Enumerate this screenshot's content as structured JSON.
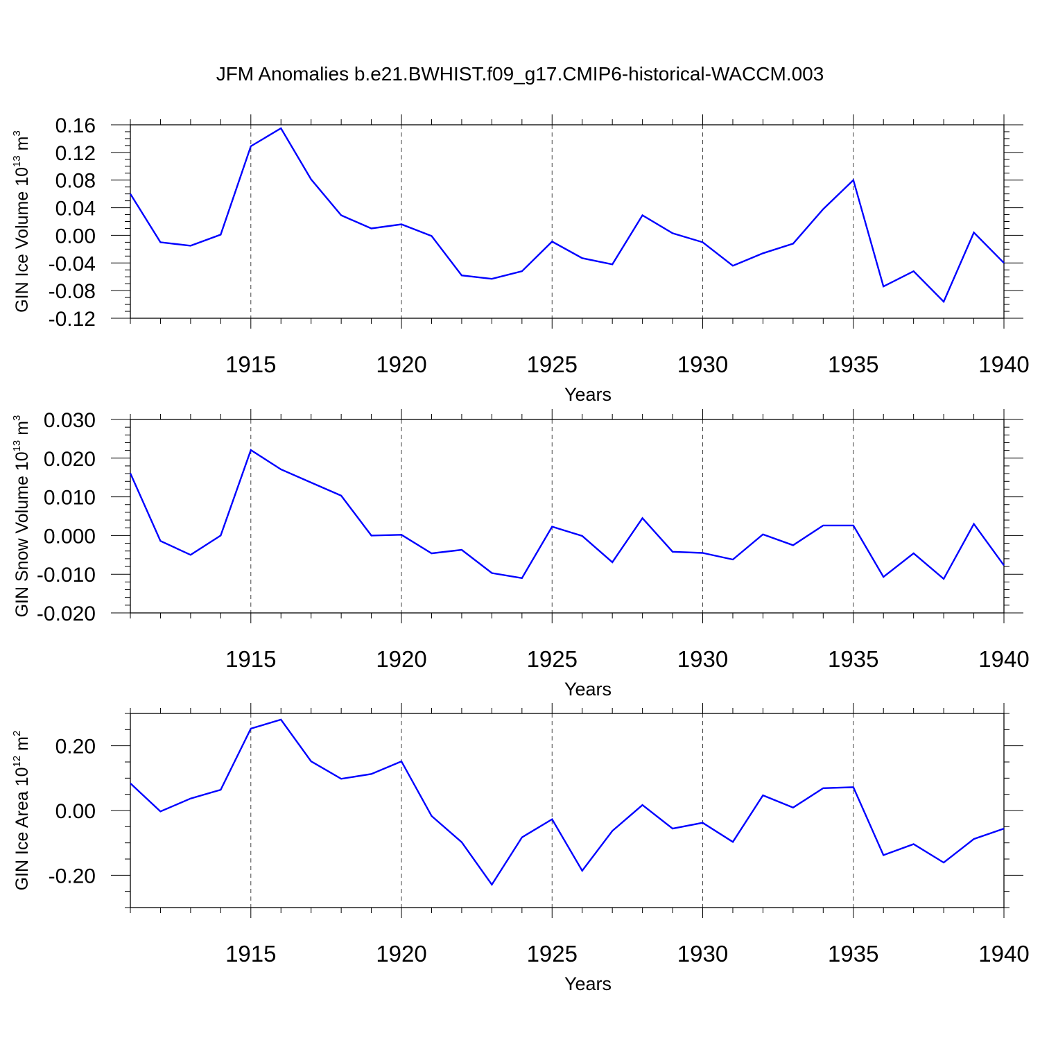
{
  "title": "JFM Anomalies b.e21.BWHIST.f09_g17.CMIP6-historical-WACCM.003",
  "colors": {
    "line": "#0000ff",
    "axis": "#000000",
    "grid": "#444444"
  },
  "chart_data": [
    {
      "type": "line",
      "ylabel": {
        "text": "GIN Ice Volume 10",
        "sup": "13",
        "unit": " m",
        "unit_sup": "3"
      },
      "xlabel": "Years",
      "xlim": [
        1911,
        1940
      ],
      "ylim": [
        -0.12,
        0.16
      ],
      "yticks": [
        0.16,
        0.12,
        0.08,
        0.04,
        0.0,
        -0.04,
        -0.08,
        -0.12
      ],
      "ytick_labels": [
        "0.16",
        "0.12",
        "0.08",
        "0.04",
        "0.00",
        "-0.04",
        "-0.08",
        "-0.12"
      ],
      "yminor_step": 0.01,
      "xticks": [
        1915,
        1920,
        1925,
        1930,
        1935,
        1940
      ],
      "xtick_labels": [
        "1915",
        "1920",
        "1925",
        "1930",
        "1935",
        "1940"
      ],
      "x": [
        1911,
        1912,
        1913,
        1914,
        1915,
        1916,
        1917,
        1918,
        1919,
        1920,
        1921,
        1922,
        1923,
        1924,
        1925,
        1926,
        1927,
        1928,
        1929,
        1930,
        1931,
        1932,
        1933,
        1934,
        1935,
        1936,
        1937,
        1938,
        1939,
        1940
      ],
      "series": [
        {
          "values": [
            0.06,
            -0.01,
            -0.015,
            0.001,
            0.129,
            0.155,
            0.081,
            0.029,
            0.01,
            0.016,
            -0.001,
            -0.058,
            -0.063,
            -0.052,
            -0.009,
            -0.033,
            -0.042,
            0.029,
            0.003,
            -0.01,
            -0.044,
            -0.026,
            -0.012,
            0.038,
            0.08,
            -0.074,
            -0.052,
            -0.096,
            0.004,
            -0.04
          ]
        }
      ],
      "grid": "vertical dashed at labeled x ticks"
    },
    {
      "type": "line",
      "ylabel": {
        "text": "GIN Snow Volume 10",
        "sup": "13",
        "unit": " m",
        "unit_sup": "3"
      },
      "xlabel": "Years",
      "xlim": [
        1911,
        1940
      ],
      "ylim": [
        -0.02,
        0.03
      ],
      "yticks": [
        0.03,
        0.02,
        0.01,
        0.0,
        -0.01,
        -0.02
      ],
      "ytick_labels": [
        "0.030",
        "0.020",
        "0.010",
        "0.000",
        "-0.010",
        "-0.020"
      ],
      "yminor_step": 0.002,
      "xticks": [
        1915,
        1920,
        1925,
        1930,
        1935,
        1940
      ],
      "xtick_labels": [
        "1915",
        "1920",
        "1925",
        "1930",
        "1935",
        "1940"
      ],
      "x": [
        1911,
        1912,
        1913,
        1914,
        1915,
        1916,
        1917,
        1918,
        1919,
        1920,
        1921,
        1922,
        1923,
        1924,
        1925,
        1926,
        1927,
        1928,
        1929,
        1930,
        1931,
        1932,
        1933,
        1934,
        1935,
        1936,
        1937,
        1938,
        1939,
        1940
      ],
      "series": [
        {
          "values": [
            0.0161,
            -0.0014,
            -0.005,
            0.0,
            0.0221,
            0.0171,
            0.0137,
            0.0103,
            0.0,
            0.0002,
            -0.0046,
            -0.0037,
            -0.0097,
            -0.011,
            0.0023,
            -0.0001,
            -0.0069,
            0.0045,
            -0.0042,
            -0.0045,
            -0.0062,
            0.0003,
            -0.0025,
            0.0026,
            0.0026,
            -0.0107,
            -0.0046,
            -0.0112,
            0.003,
            -0.0077
          ]
        }
      ],
      "grid": "vertical dashed at labeled x ticks"
    },
    {
      "type": "line",
      "ylabel": {
        "text": "GIN Ice Area 10",
        "sup": "12",
        "unit": " m",
        "unit_sup": "2"
      },
      "xlabel": "Years",
      "xlim": [
        1911,
        1940
      ],
      "ylim": [
        -0.3,
        0.3
      ],
      "yticks": [
        0.2,
        0.0,
        -0.2
      ],
      "ytick_labels": [
        "0.20",
        "0.00",
        "-0.20"
      ],
      "yminor_step": 0.05,
      "xticks": [
        1915,
        1920,
        1925,
        1930,
        1935,
        1940
      ],
      "xtick_labels": [
        "1915",
        "1920",
        "1925",
        "1930",
        "1935",
        "1940"
      ],
      "x": [
        1911,
        1912,
        1913,
        1914,
        1915,
        1916,
        1917,
        1918,
        1919,
        1920,
        1921,
        1922,
        1923,
        1924,
        1925,
        1926,
        1927,
        1928,
        1929,
        1930,
        1931,
        1932,
        1933,
        1934,
        1935,
        1936,
        1937,
        1938,
        1939,
        1940
      ],
      "series": [
        {
          "values": [
            0.084,
            -0.003,
            0.037,
            0.064,
            0.253,
            0.281,
            0.152,
            0.098,
            0.113,
            0.152,
            -0.017,
            -0.098,
            -0.229,
            -0.083,
            -0.027,
            -0.186,
            -0.063,
            0.017,
            -0.056,
            -0.038,
            -0.097,
            0.047,
            0.009,
            0.069,
            0.072,
            -0.138,
            -0.104,
            -0.161,
            -0.088,
            -0.056
          ]
        }
      ],
      "grid": "vertical dashed at labeled x ticks"
    }
  ]
}
